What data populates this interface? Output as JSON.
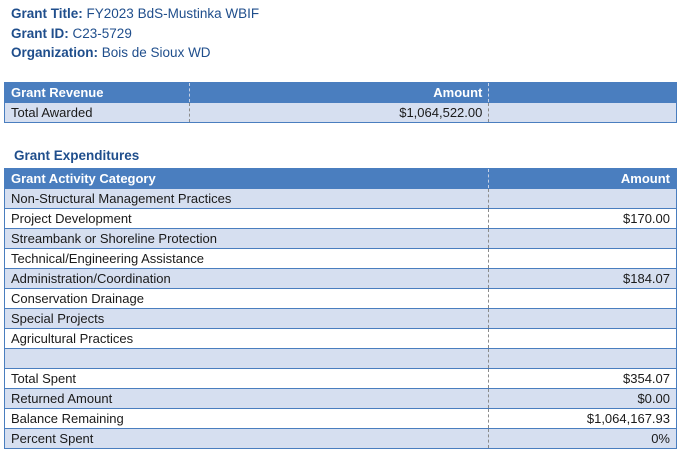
{
  "header": {
    "grant_title_label": "Grant Title:",
    "grant_title_value": "FY2023 BdS-Mustinka WBIF",
    "grant_id_label": "Grant ID:",
    "grant_id_value": "C23-5729",
    "organization_label": "Organization:",
    "organization_value": "Bois de Sioux WD"
  },
  "revenue": {
    "col_category": "Grant Revenue",
    "col_amount": "Amount",
    "row_label": "Total Awarded",
    "row_amount": "$1,064,522.00"
  },
  "expenditures": {
    "section_title": "Grant Expenditures",
    "col_category": "Grant Activity Category",
    "col_amount": "Amount",
    "rows": [
      {
        "label": "Non-Structural Management Practices",
        "amount": ""
      },
      {
        "label": "Project Development",
        "amount": "$170.00"
      },
      {
        "label": "Streambank or Shoreline Protection",
        "amount": ""
      },
      {
        "label": "Technical/Engineering Assistance",
        "amount": ""
      },
      {
        "label": "Administration/Coordination",
        "amount": "$184.07"
      },
      {
        "label": "Conservation Drainage",
        "amount": ""
      },
      {
        "label": "Special Projects",
        "amount": ""
      },
      {
        "label": "Agricultural Practices",
        "amount": ""
      },
      {
        "label": "",
        "amount": ""
      }
    ],
    "totals": [
      {
        "label": "Total Spent",
        "amount": "$354.07"
      },
      {
        "label": "Returned Amount",
        "amount": "$0.00"
      },
      {
        "label": "Balance Remaining",
        "amount": "$1,064,167.93"
      },
      {
        "label": "Percent Spent",
        "amount": "0%"
      }
    ]
  }
}
